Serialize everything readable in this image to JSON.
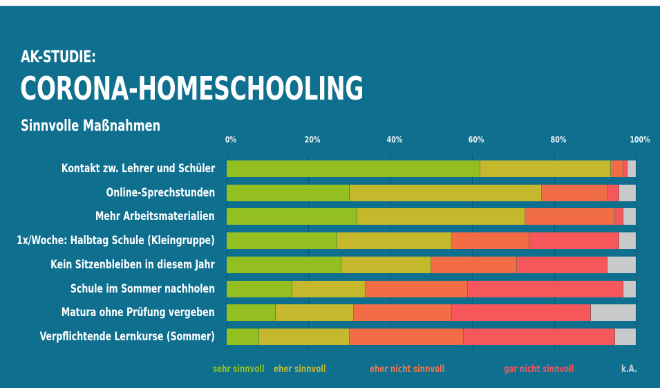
{
  "header": {
    "pretitle": "AK-STUDIE:",
    "title": "CORONA-HOMESCHOOLING",
    "subtitle": "Sinnvolle Maßnahmen"
  },
  "axis": {
    "ticks": [
      "0%",
      "20%",
      "40%",
      "60%",
      "80%",
      "100%"
    ]
  },
  "legend": {
    "items": [
      {
        "label": "sehr sinnvoll",
        "color": "#8fc22a"
      },
      {
        "label": "eher sinnvoll",
        "color": "#bdb832"
      },
      {
        "label": "eher nicht sinnvoll",
        "color": "#f0764d"
      },
      {
        "label": "gar nicht sinnvoll",
        "color": "#f0575d"
      },
      {
        "label": "k.A.",
        "color": "#c9d2d6"
      }
    ]
  },
  "colors": {
    "background": "#0e6f8f",
    "sehr_sinnvoll": "#93bf21",
    "eher_sinnvoll": "#c5b82c",
    "eher_nicht_sinnvoll": "#f26d45",
    "gar_nicht_sinnvoll": "#f5575a",
    "k_a": "#c9c9c9"
  },
  "rows": [
    {
      "label": "Kontakt zw. Lehrer und Schüler"
    },
    {
      "label": "Online-Sprechstunden"
    },
    {
      "label": "Mehr Arbeitsmaterialien"
    },
    {
      "label": "1x/Woche: Halbtag Schule (Kleingruppe)"
    },
    {
      "label": "Kein Sitzenbleiben in diesem Jahr"
    },
    {
      "label": "Schule im Sommer nachholen"
    },
    {
      "label": "Matura ohne Prüfung vergeben"
    },
    {
      "label": "Verpflichtende Lernkurse (Sommer)"
    }
  ],
  "chart_data": {
    "type": "bar",
    "orientation": "horizontal",
    "stacked": true,
    "normalized": true,
    "title": "AK-STUDIE: CORONA-HOMESCHOOLING",
    "subtitle": "Sinnvolle Maßnahmen",
    "xlabel": "",
    "ylabel": "",
    "xlim": [
      0,
      100
    ],
    "xticks": [
      "0%",
      "20%",
      "40%",
      "60%",
      "80%",
      "100%"
    ],
    "grid": true,
    "legend_position": "bottom",
    "categories": [
      "Kontakt zw. Lehrer und Schüler",
      "Online-Sprechstunden",
      "Mehr Arbeitsmaterialien",
      "1x/Woche: Halbtag Schule (Kleingruppe)",
      "Kein Sitzenbleiben in diesem Jahr",
      "Schule im Sommer nachholen",
      "Matura ohne Prüfung vergeben",
      "Verpflichtende Lernkurse (Sommer)"
    ],
    "series": [
      {
        "name": "sehr sinnvoll",
        "color": "#93bf21",
        "values": [
          62,
          30,
          32,
          27,
          28,
          16,
          12,
          8
        ]
      },
      {
        "name": "eher sinnvoll",
        "color": "#c5b82c",
        "values": [
          32,
          47,
          41,
          28,
          22,
          18,
          19,
          22
        ]
      },
      {
        "name": "eher nicht sinnvoll",
        "color": "#f26d45",
        "values": [
          3,
          16,
          22,
          19,
          21,
          25,
          24,
          28
        ]
      },
      {
        "name": "gar nicht sinnvoll",
        "color": "#f5575a",
        "values": [
          1,
          3,
          2,
          22,
          22,
          38,
          34,
          37
        ]
      },
      {
        "name": "k.A.",
        "color": "#c9c9c9",
        "values": [
          2,
          4,
          3,
          4,
          7,
          3,
          11,
          5
        ]
      }
    ]
  }
}
